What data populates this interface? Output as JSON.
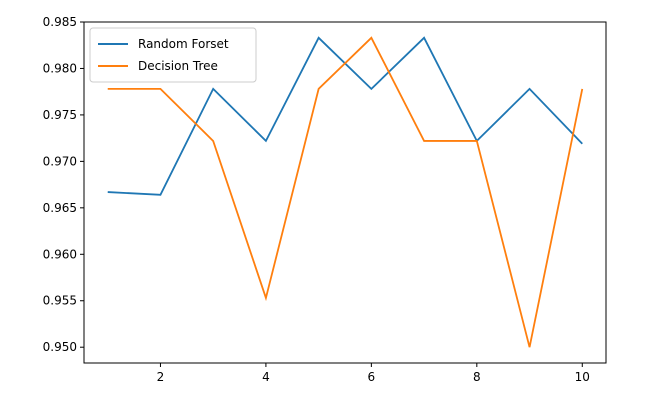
{
  "chart_data": {
    "type": "line",
    "title": "",
    "xlabel": "",
    "ylabel": "",
    "x": [
      1,
      2,
      3,
      4,
      5,
      6,
      7,
      8,
      9,
      10
    ],
    "xlim": [
      0.55,
      10.45
    ],
    "ylim": [
      0.9483,
      0.985
    ],
    "x_ticks": [
      2,
      4,
      6,
      8,
      10
    ],
    "y_ticks": [
      0.95,
      0.955,
      0.96,
      0.965,
      0.97,
      0.975,
      0.98,
      0.985
    ],
    "y_tick_labels": [
      "0.950",
      "0.955",
      "0.960",
      "0.965",
      "0.970",
      "0.975",
      "0.980",
      "0.985"
    ],
    "grid": false,
    "legend": "top-left",
    "series": [
      {
        "name": "Random Forset",
        "color": "#1f77b4",
        "values": [
          0.9667,
          0.9664,
          0.9778,
          0.9722,
          0.9833,
          0.9778,
          0.9833,
          0.9722,
          0.9778,
          0.9719
        ]
      },
      {
        "name": "Decision Tree",
        "color": "#ff7f0e",
        "values": [
          0.9778,
          0.9778,
          0.9722,
          0.9553,
          0.9778,
          0.9833,
          0.9722,
          0.9722,
          0.95,
          0.9778
        ]
      }
    ]
  }
}
